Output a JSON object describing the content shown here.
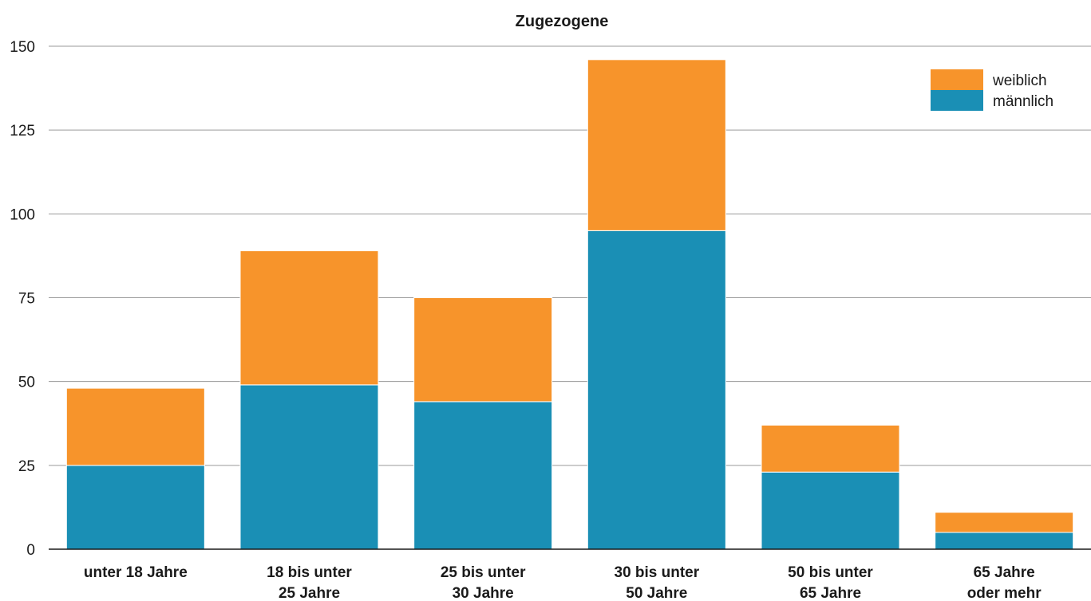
{
  "chart_data": {
    "type": "bar",
    "stacked": true,
    "title": "Zugezogene",
    "xlabel": "",
    "ylabel": "",
    "ylim": [
      0,
      150
    ],
    "yticks": [
      0,
      25,
      50,
      75,
      100,
      125,
      150
    ],
    "grid": true,
    "legend_position": "top-right",
    "categories": [
      [
        "unter 18 Jahre"
      ],
      [
        "18 bis unter",
        "25 Jahre"
      ],
      [
        "25 bis unter",
        "30 Jahre"
      ],
      [
        "30 bis unter",
        "50 Jahre"
      ],
      [
        "50 bis unter",
        "65 Jahre"
      ],
      [
        "65 Jahre",
        "oder mehr"
      ]
    ],
    "series": [
      {
        "name": "männlich",
        "color": "#1a8fb5",
        "values": [
          25,
          49,
          44,
          95,
          23,
          5
        ]
      },
      {
        "name": "weiblich",
        "color": "#f7942b",
        "values": [
          23,
          40,
          31,
          51,
          14,
          6
        ]
      }
    ],
    "legend_order": [
      "weiblich",
      "männlich"
    ]
  }
}
